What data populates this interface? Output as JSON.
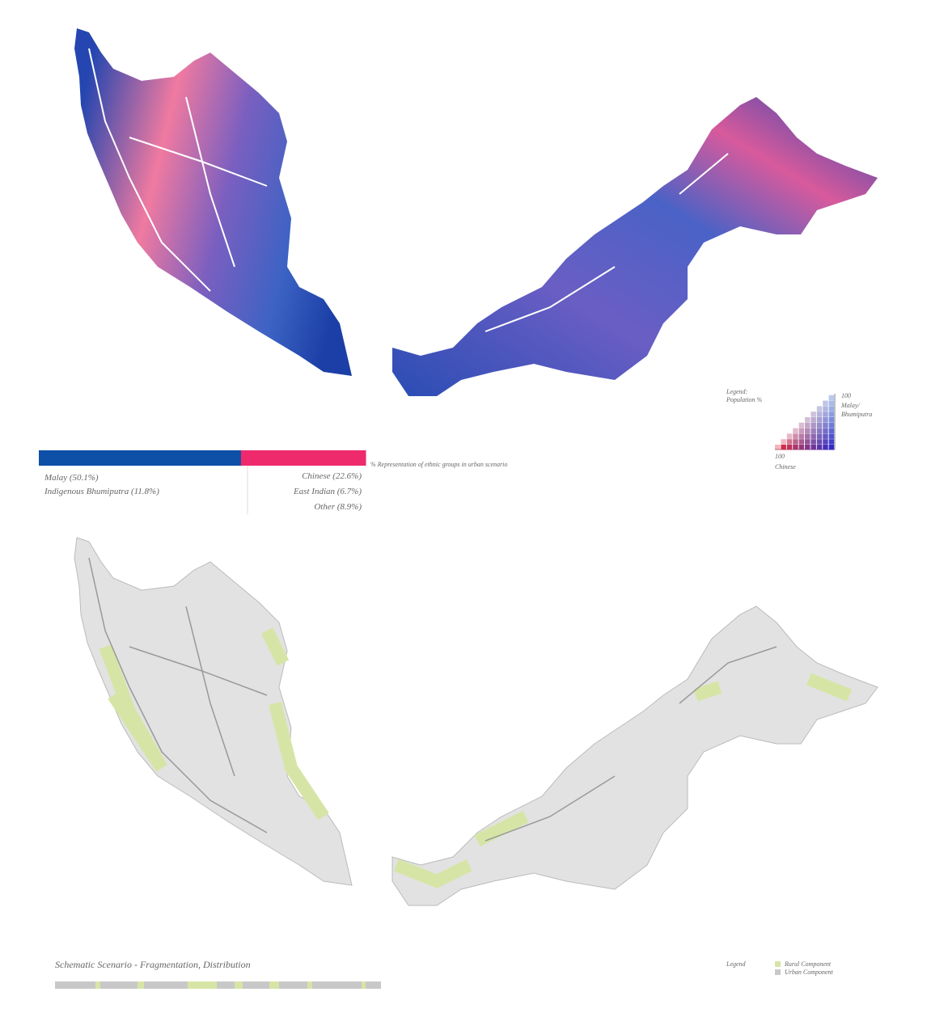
{
  "ethnic_bar": {
    "caption": "% Representation of ethnic groups in urban scenario",
    "groups": [
      {
        "label": "Malay (50.1%)",
        "value": 50.1,
        "color": "#0e4fa8"
      },
      {
        "label": "Indigenous Bhumiputra (11.8%)",
        "value": 11.8,
        "color": "#0e4fa8"
      },
      {
        "label": "Chinese (22.6%)",
        "value": 22.6,
        "color": "#ee2a6c"
      },
      {
        "label": "East Indian (6.7%)",
        "value": 6.7,
        "color": "#ee2a6c"
      },
      {
        "label": "Other (8.9%)",
        "value": 8.9,
        "color": "#ee2a6c"
      }
    ]
  },
  "population_legend": {
    "title": "Legend:",
    "subtitle": "Population %",
    "top_value": "100",
    "top_label_1": "Malay/",
    "top_label_2": "Bhumiputra",
    "bottom_value": "100",
    "bottom_label": "Chinese"
  },
  "scenario": {
    "title": "Schematic Scenario - Fragmentation, Distribution",
    "legend_title": "Legend",
    "rural": "Rural Component",
    "urban": "Urban Component"
  }
}
